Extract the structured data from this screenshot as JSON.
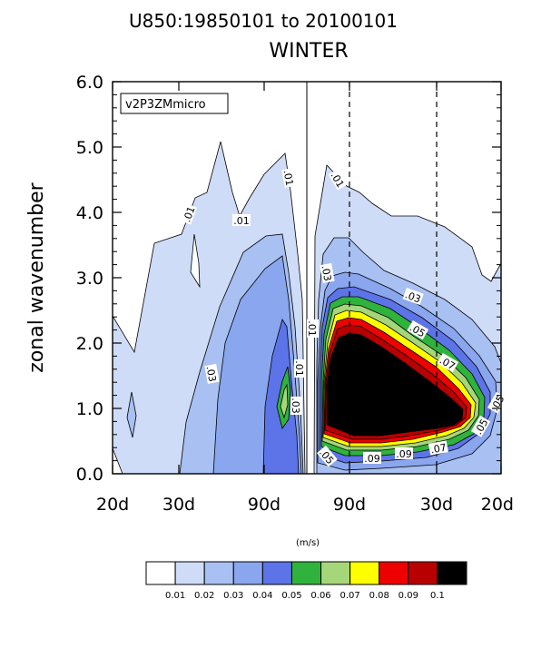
{
  "chart_data": {
    "type": "filled-contour",
    "title": "U850:19850101 to 20100101",
    "subtitle": "WINTER",
    "legend_label": "v2P3ZMmicro",
    "ylabel": "zonal wavenumber",
    "ylim": [
      0.0,
      6.0
    ],
    "yticks": [
      "0.0",
      "1.0",
      "2.0",
      "3.0",
      "4.0",
      "5.0",
      "6.0"
    ],
    "xticks": [
      "20d",
      "30d",
      "90d",
      "90d",
      "30d",
      "20d"
    ],
    "units": "(m/s)",
    "colorbar": {
      "colors": [
        "#ffffff",
        "#cfdcf8",
        "#a8c0f2",
        "#8aa6ee",
        "#5d73e8",
        "#2fb33c",
        "#a6d67a",
        "#ffff00",
        "#ee0000",
        "#b80000",
        "#000000"
      ],
      "labels": [
        "0.01",
        "0.02",
        "0.03",
        "0.04",
        "0.05",
        "0.06",
        "0.07",
        "0.08",
        "0.09",
        "0.1"
      ]
    },
    "contour_labels": [
      ".01",
      ".01",
      ".01",
      ".01",
      ".03",
      ".03",
      ".01",
      ".01",
      ".03",
      ".03",
      ".05",
      ".05",
      ".07",
      ".05",
      ".09",
      ".09",
      ".07",
      ".05"
    ]
  }
}
